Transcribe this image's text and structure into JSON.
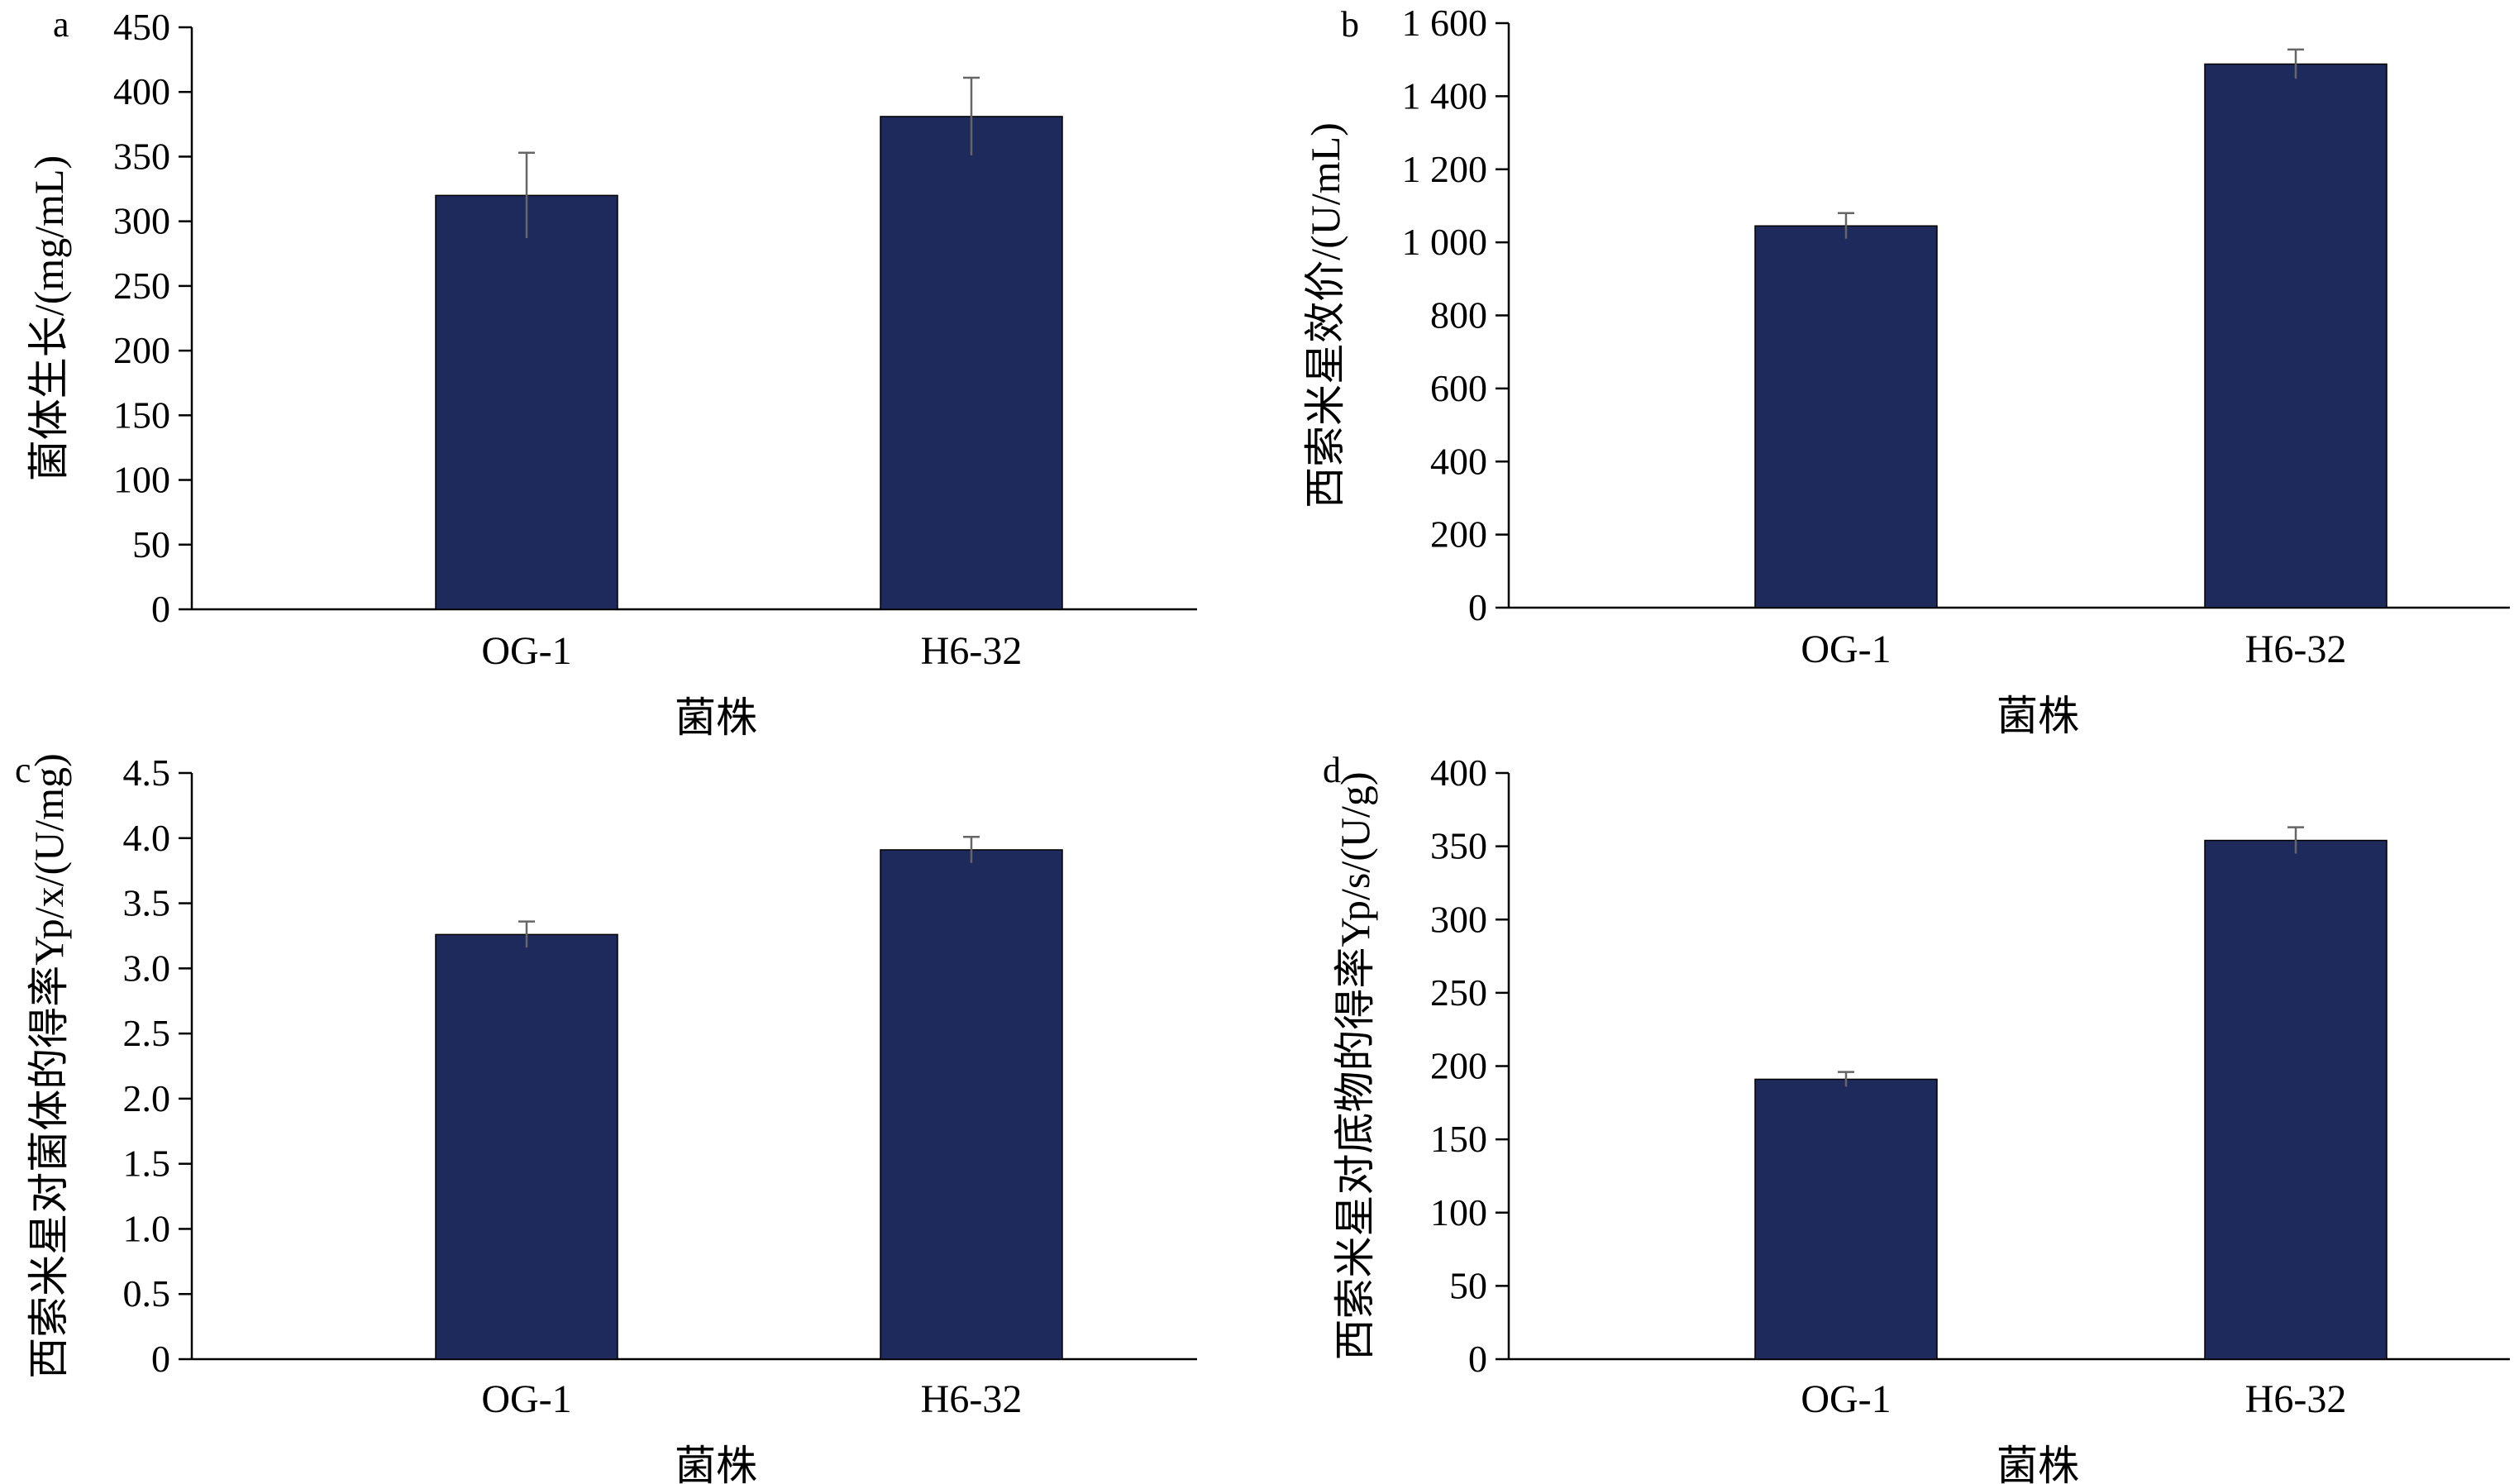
{
  "colors": {
    "bar": "#1f2a5c",
    "axis": "#000000",
    "error_bar": "#666666"
  },
  "chart_data": [
    {
      "panel": "a",
      "type": "bar",
      "categories": [
        "OG-1",
        "H6-32"
      ],
      "series": [
        {
          "values": [
            320,
            381
          ],
          "errors": [
            33,
            30
          ]
        }
      ],
      "xlabel": "菌株",
      "ylabel": "菌体生长/(mg/mL)",
      "ylim": [
        0,
        450
      ],
      "yticks": [
        0,
        50,
        100,
        150,
        200,
        250,
        300,
        350,
        400,
        450
      ],
      "ytick_labels": [
        "0",
        "50",
        "100",
        "150",
        "200",
        "250",
        "300",
        "350",
        "400",
        "450"
      ],
      "grid": false
    },
    {
      "panel": "b",
      "type": "bar",
      "categories": [
        "OG-1",
        "H6-32"
      ],
      "series": [
        {
          "values": [
            1045,
            1488
          ],
          "errors": [
            35,
            40
          ]
        }
      ],
      "xlabel": "菌株",
      "ylabel": "西索米星效价/(U/mL)",
      "ylim": [
        0,
        1600
      ],
      "yticks": [
        0,
        200,
        400,
        600,
        800,
        1000,
        1200,
        1400,
        1600
      ],
      "ytick_labels": [
        "0",
        "200",
        "400",
        "600",
        "800",
        "1 000",
        "1 200",
        "1 400",
        "1 600"
      ],
      "grid": false
    },
    {
      "panel": "c",
      "type": "bar",
      "categories": [
        "OG-1",
        "H6-32"
      ],
      "series": [
        {
          "values": [
            3.26,
            3.91
          ],
          "errors": [
            0.1,
            0.1
          ]
        }
      ],
      "xlabel": "菌株",
      "ylabel": "西索米星对菌体的得率Yp/x/(U/mg)",
      "ylim": [
        0,
        4.5
      ],
      "yticks": [
        0,
        0.5,
        1.0,
        1.5,
        2.0,
        2.5,
        3.0,
        3.5,
        4.0,
        4.5
      ],
      "ytick_labels": [
        "0",
        "0.5",
        "1.0",
        "1.5",
        "2.0",
        "2.5",
        "3.0",
        "3.5",
        "4.0",
        "4.5"
      ],
      "grid": false
    },
    {
      "panel": "d",
      "type": "bar",
      "categories": [
        "OG-1",
        "H6-32"
      ],
      "series": [
        {
          "values": [
            191,
            354
          ],
          "errors": [
            5,
            9
          ]
        }
      ],
      "xlabel": "菌株",
      "ylabel": "西索米星对底物的得率Yp/s/(U/g)",
      "ylim": [
        0,
        400
      ],
      "yticks": [
        0,
        50,
        100,
        150,
        200,
        250,
        300,
        350,
        400
      ],
      "ytick_labels": [
        "0",
        "50",
        "100",
        "150",
        "200",
        "250",
        "300",
        "350",
        "400"
      ],
      "grid": false
    }
  ]
}
